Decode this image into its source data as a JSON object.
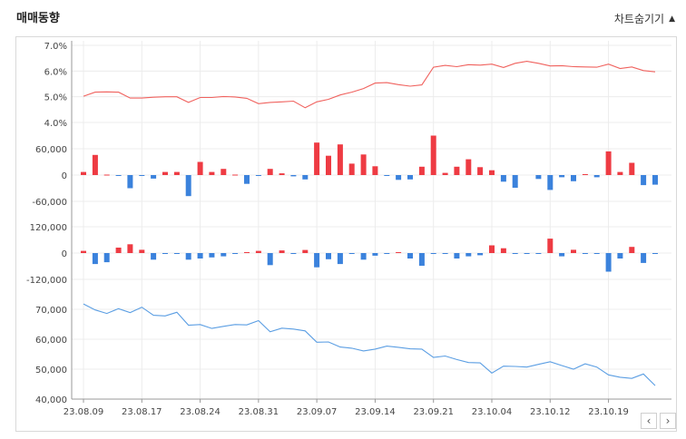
{
  "header": {
    "title": "매매동향",
    "toggle_label": "차트숨기기",
    "toggle_icon": "triangle-up-icon"
  },
  "nav": {
    "prev": "‹",
    "next": "›"
  },
  "colors": {
    "ratio_line": "#f0625e",
    "price_line": "#5b9ee3",
    "up": "#ee3b43",
    "down": "#3b82dc",
    "grid": "#ececec"
  },
  "chart_data": {
    "type": "line",
    "x_ticks": [
      "23.08.09",
      "23.08.17",
      "23.08.24",
      "23.08.31",
      "23.09.07",
      "23.09.14",
      "23.09.21",
      "23.10.04",
      "23.10.12",
      "23.10.19"
    ],
    "x_tick_index": [
      0,
      5,
      10,
      15,
      20,
      25,
      30,
      35,
      40,
      45
    ],
    "panels": [
      {
        "name": "foreign-ratio",
        "type": "line",
        "y_ticks": [
          "7.0%",
          "6.0%",
          "5.0%",
          "4.0%"
        ],
        "ylim": [
          3.55,
          7.0
        ],
        "tick_values": [
          7.0,
          6.0,
          5.0,
          4.0
        ],
        "values": [
          5.02,
          5.18,
          5.19,
          5.18,
          4.95,
          4.95,
          4.98,
          5.0,
          5.0,
          4.78,
          4.97,
          4.97,
          5.01,
          4.99,
          4.94,
          4.73,
          4.78,
          4.8,
          4.83,
          4.57,
          4.8,
          4.9,
          5.07,
          5.18,
          5.32,
          5.53,
          5.55,
          5.47,
          5.41,
          5.46,
          6.15,
          6.22,
          6.17,
          6.25,
          6.23,
          6.27,
          6.14,
          6.3,
          6.38,
          6.3,
          6.2,
          6.21,
          6.17,
          6.16,
          6.15,
          6.27,
          6.1,
          6.16,
          6.02,
          5.97
        ]
      },
      {
        "name": "foreign-net",
        "type": "bar",
        "y_ticks": [
          "60,000",
          "0",
          "-60,000"
        ],
        "ylim": [
          -70000,
          80000
        ],
        "tick_values": [
          60000,
          0,
          -60000
        ],
        "values": [
          7000,
          46000,
          1000,
          -1000,
          -30000,
          -1000,
          -8000,
          7000,
          7000,
          -48000,
          30000,
          7000,
          14000,
          1000,
          -20000,
          -1000,
          14000,
          4000,
          -3000,
          -10000,
          74000,
          44000,
          70000,
          26000,
          47000,
          20000,
          -2000,
          -11000,
          -10000,
          19000,
          90000,
          5000,
          19000,
          36000,
          18000,
          11000,
          -15000,
          -29000,
          0,
          -9000,
          -34000,
          -5000,
          -14000,
          2000,
          -5000,
          54000,
          7000,
          28000,
          -23000,
          -22000
        ]
      },
      {
        "name": "institution-net",
        "type": "bar",
        "y_ticks": [
          "120,000",
          "0",
          "-120,000"
        ],
        "ylim": [
          -140000,
          160000
        ],
        "tick_values": [
          120000,
          0,
          -120000
        ],
        "values": [
          10000,
          -50000,
          -42000,
          25000,
          40000,
          15000,
          -30000,
          -1000,
          -1000,
          -30000,
          -25000,
          -20000,
          -15000,
          -1000,
          4000,
          10000,
          -55000,
          12000,
          -1000,
          14000,
          -65000,
          -28000,
          -50000,
          -2000,
          -30000,
          -12000,
          -2000,
          4000,
          -25000,
          -58000,
          -1000,
          -2000,
          -25000,
          -15000,
          -10000,
          35000,
          22000,
          -1000,
          -1000,
          -1000,
          66000,
          -15000,
          15000,
          -1000,
          -1000,
          -85000,
          -25000,
          28000,
          -45000,
          -1000
        ]
      },
      {
        "name": "price",
        "type": "line",
        "y_ticks": [
          "70,000",
          "60,000",
          "50,000",
          "40,000"
        ],
        "ylim": [
          40000,
          76000
        ],
        "tick_values": [
          70000,
          60000,
          50000,
          40000
        ],
        "values": [
          71800,
          69800,
          68600,
          70200,
          68900,
          70700,
          68000,
          67800,
          69000,
          64700,
          64900,
          63600,
          64300,
          64900,
          64800,
          66200,
          62500,
          63700,
          63400,
          62800,
          59000,
          59100,
          57400,
          57000,
          56100,
          56700,
          57700,
          57300,
          56800,
          56700,
          53900,
          54400,
          53200,
          52200,
          52100,
          48700,
          51000,
          50900,
          50700,
          51600,
          52500,
          51200,
          50000,
          51800,
          50700,
          48100,
          47300,
          46900,
          48400,
          44500
        ]
      }
    ]
  }
}
